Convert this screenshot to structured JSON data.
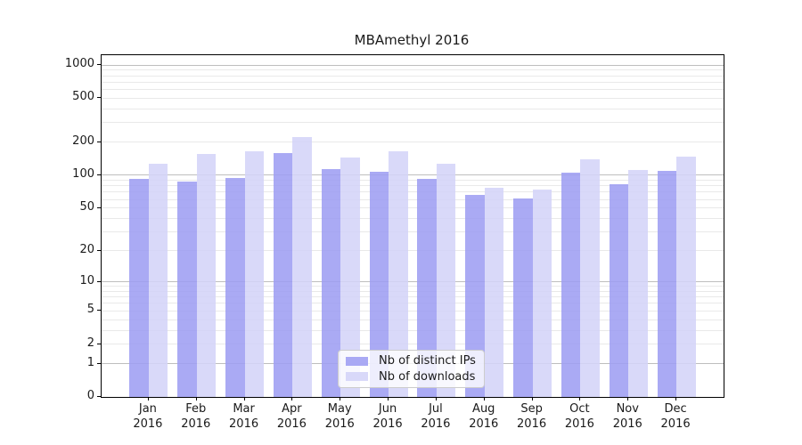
{
  "chart_data": {
    "type": "bar",
    "title": "MBAmethyl 2016",
    "categories": [
      "Jan",
      "Feb",
      "Mar",
      "Apr",
      "May",
      "Jun",
      "Jul",
      "Aug",
      "Sep",
      "Oct",
      "Nov",
      "Dec"
    ],
    "x_tick_year": "2016",
    "series": [
      {
        "name": "Nb of distinct IPs",
        "color": "#9d9df2",
        "values": [
          92,
          88,
          94,
          160,
          113,
          108,
          93,
          66,
          61,
          105,
          83,
          110
        ]
      },
      {
        "name": "Nb of downloads",
        "color": "#d3d3f8",
        "values": [
          128,
          157,
          165,
          224,
          146,
          164,
          126,
          76,
          74,
          140,
          112,
          148
        ]
      }
    ],
    "y_ticks": [
      0,
      1,
      2,
      5,
      10,
      20,
      50,
      100,
      200,
      500,
      1000
    ],
    "y_scale": "log10(1+v)",
    "ylim": [
      0,
      1000
    ],
    "grid": "horizontal",
    "legend_position": "lower-center",
    "colors": {
      "major_grid": "#bebebe",
      "minor_grid": "#e9e9e9",
      "axis": "#000000",
      "text": "#1a1a1a"
    }
  }
}
